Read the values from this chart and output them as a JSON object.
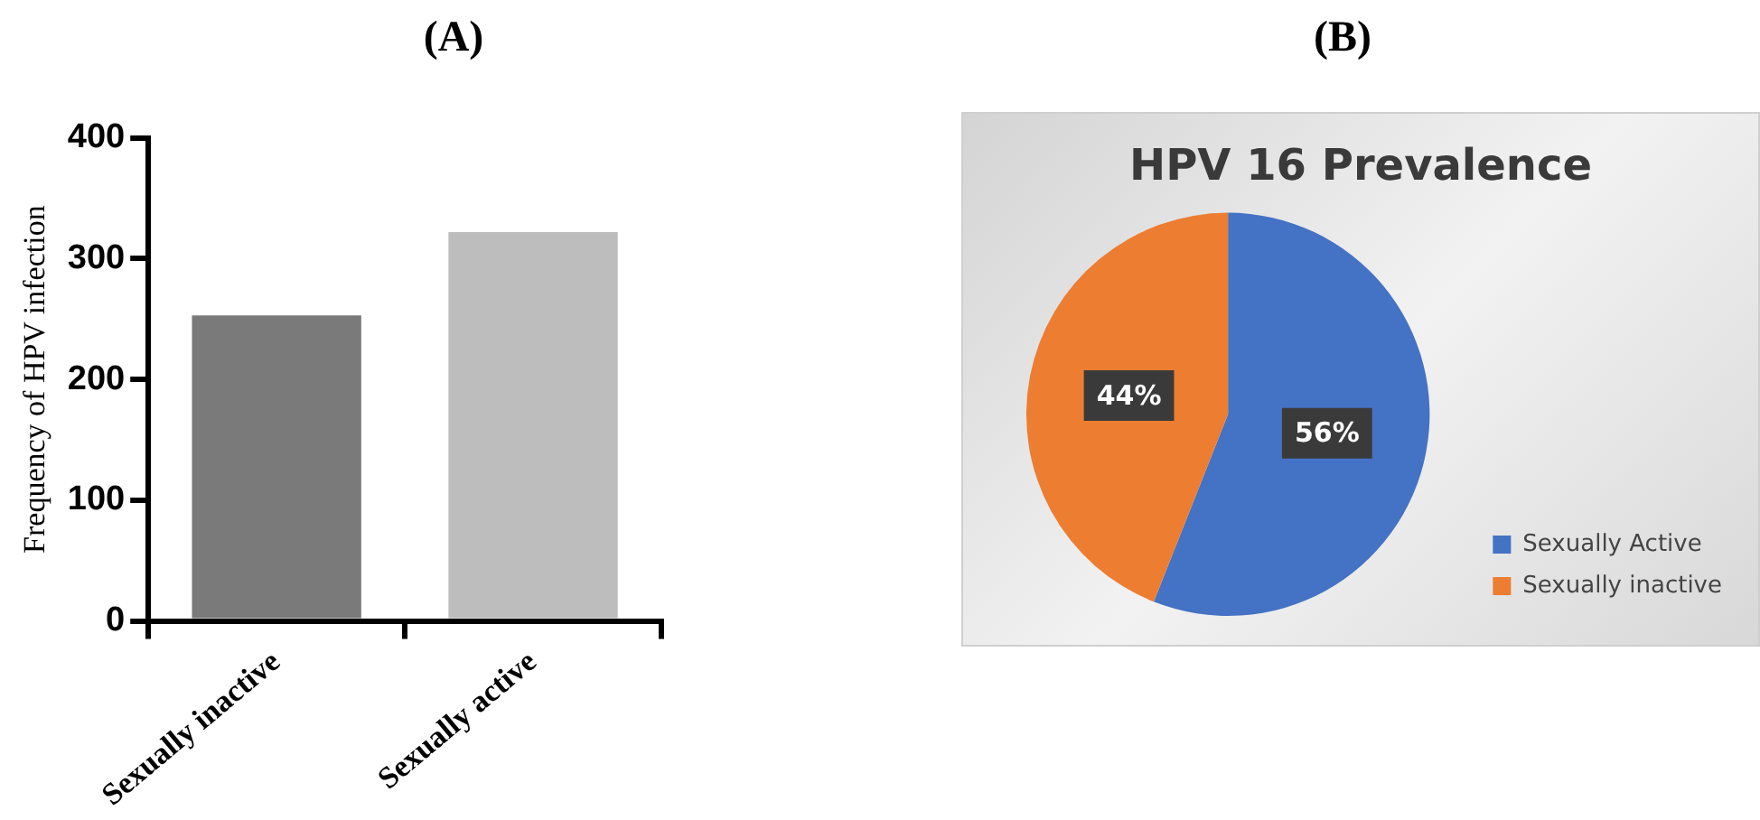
{
  "chart_data": [
    {
      "type": "bar",
      "title": "(A)",
      "ylabel": "Frequency of HPV infection",
      "categories": [
        "Sexually inactive",
        "Sexually active"
      ],
      "values": [
        253,
        322
      ],
      "colors": [
        "#7a7a7a",
        "#bdbdbd"
      ],
      "ylim": [
        0,
        400
      ],
      "yticks": [
        0,
        100,
        200,
        300,
        400
      ],
      "grid": false,
      "legend": false
    },
    {
      "type": "pie",
      "title": "(B)",
      "subtitle": "HPV 16 Prevalence",
      "categories": [
        "Sexually Active",
        "Sexually inactive"
      ],
      "values": [
        56,
        44
      ],
      "colors": [
        "#4472c4",
        "#ed7d31"
      ],
      "value_labels": [
        "56%",
        "44%"
      ],
      "legend": "right"
    }
  ]
}
